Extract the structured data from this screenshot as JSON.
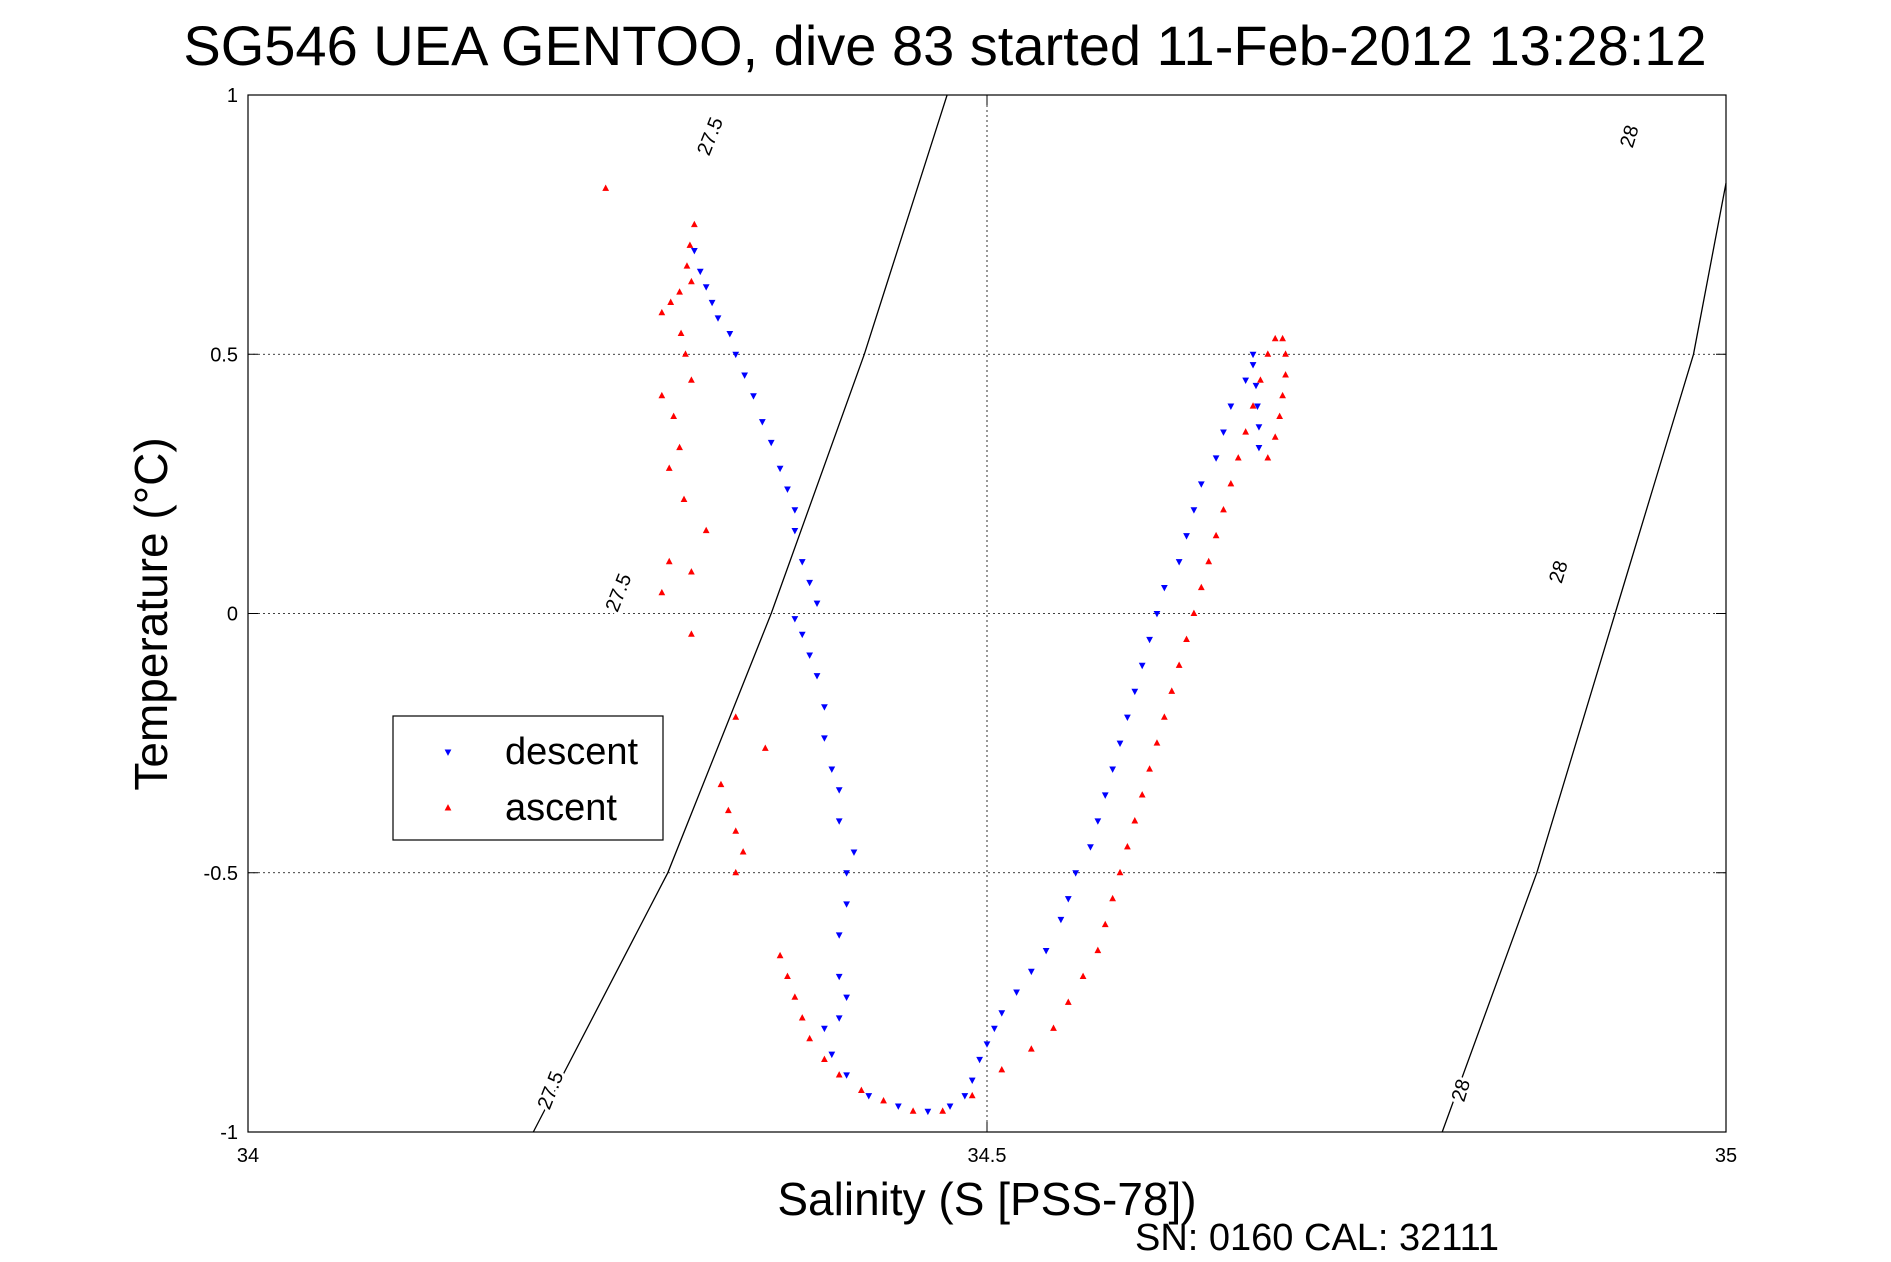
{
  "chart_data": {
    "type": "scatter",
    "title": "SG546 UEA GENTOO, dive 83 started 11-Feb-2012 13:28:12",
    "xlabel": "Salinity (S [PSS-78])",
    "ylabel": "Temperature (°C)",
    "xlim": [
      34,
      35
    ],
    "ylim": [
      -1,
      1
    ],
    "xticks": [
      34,
      34.5,
      35
    ],
    "xtick_labels": [
      "34",
      "34.5",
      "35"
    ],
    "yticks": [
      -1,
      -0.5,
      0,
      0.5,
      1
    ],
    "ytick_labels": [
      "-1",
      "-0.5",
      "0",
      "0.5",
      "1"
    ],
    "grid": true,
    "legend_position": "middle-left",
    "footer": "SN: 0160  CAL: 32111",
    "density_contours": [
      {
        "level": "27.5",
        "points": [
          [
            34.193,
            -1.0
          ],
          [
            34.284,
            -0.5
          ],
          [
            34.354,
            0.0
          ],
          [
            34.417,
            0.5
          ],
          [
            34.473,
            1.0
          ]
        ],
        "labels": [
          [
            34.205,
            -0.92
          ],
          [
            34.251,
            0.04
          ],
          [
            34.313,
            0.92
          ]
        ]
      },
      {
        "level": "28",
        "points": [
          [
            34.808,
            -1.0
          ],
          [
            34.872,
            -0.5
          ],
          [
            34.925,
            0.0
          ],
          [
            34.978,
            0.5
          ],
          [
            35.0,
            0.83
          ]
        ],
        "labels": [
          [
            34.821,
            -0.92
          ],
          [
            34.887,
            0.08
          ],
          [
            34.935,
            0.92
          ]
        ]
      }
    ],
    "series": [
      {
        "name": "descent",
        "color": "#0000ff",
        "marker": "triangle-down",
        "points": [
          [
            34.302,
            0.7
          ],
          [
            34.306,
            0.66
          ],
          [
            34.31,
            0.63
          ],
          [
            34.314,
            0.6
          ],
          [
            34.318,
            0.57
          ],
          [
            34.326,
            0.54
          ],
          [
            34.33,
            0.5
          ],
          [
            34.336,
            0.46
          ],
          [
            34.342,
            0.42
          ],
          [
            34.348,
            0.37
          ],
          [
            34.354,
            0.33
          ],
          [
            34.36,
            0.28
          ],
          [
            34.365,
            0.24
          ],
          [
            34.37,
            0.2
          ],
          [
            34.37,
            0.16
          ],
          [
            34.375,
            0.1
          ],
          [
            34.38,
            0.06
          ],
          [
            34.385,
            0.02
          ],
          [
            34.37,
            -0.01
          ],
          [
            34.375,
            -0.04
          ],
          [
            34.38,
            -0.08
          ],
          [
            34.385,
            -0.12
          ],
          [
            34.39,
            -0.18
          ],
          [
            34.39,
            -0.24
          ],
          [
            34.395,
            -0.3
          ],
          [
            34.4,
            -0.34
          ],
          [
            34.4,
            -0.4
          ],
          [
            34.41,
            -0.46
          ],
          [
            34.405,
            -0.5
          ],
          [
            34.405,
            -0.56
          ],
          [
            34.4,
            -0.62
          ],
          [
            34.4,
            -0.7
          ],
          [
            34.405,
            -0.74
          ],
          [
            34.4,
            -0.78
          ],
          [
            34.39,
            -0.8
          ],
          [
            34.395,
            -0.85
          ],
          [
            34.405,
            -0.89
          ],
          [
            34.42,
            -0.93
          ],
          [
            34.44,
            -0.95
          ],
          [
            34.46,
            -0.96
          ],
          [
            34.475,
            -0.95
          ],
          [
            34.485,
            -0.93
          ],
          [
            34.49,
            -0.9
          ],
          [
            34.495,
            -0.86
          ],
          [
            34.5,
            -0.83
          ],
          [
            34.505,
            -0.8
          ],
          [
            34.51,
            -0.77
          ],
          [
            34.52,
            -0.73
          ],
          [
            34.53,
            -0.69
          ],
          [
            34.54,
            -0.65
          ],
          [
            34.55,
            -0.59
          ],
          [
            34.555,
            -0.55
          ],
          [
            34.56,
            -0.5
          ],
          [
            34.57,
            -0.45
          ],
          [
            34.575,
            -0.4
          ],
          [
            34.58,
            -0.35
          ],
          [
            34.585,
            -0.3
          ],
          [
            34.59,
            -0.25
          ],
          [
            34.595,
            -0.2
          ],
          [
            34.6,
            -0.15
          ],
          [
            34.605,
            -0.1
          ],
          [
            34.61,
            -0.05
          ],
          [
            34.615,
            0.0
          ],
          [
            34.62,
            0.05
          ],
          [
            34.63,
            0.1
          ],
          [
            34.635,
            0.15
          ],
          [
            34.64,
            0.2
          ],
          [
            34.645,
            0.25
          ],
          [
            34.655,
            0.3
          ],
          [
            34.66,
            0.35
          ],
          [
            34.665,
            0.4
          ],
          [
            34.675,
            0.45
          ],
          [
            34.68,
            0.5
          ],
          [
            34.68,
            0.48
          ],
          [
            34.682,
            0.44
          ],
          [
            34.683,
            0.4
          ],
          [
            34.684,
            0.36
          ],
          [
            34.684,
            0.32
          ]
        ]
      },
      {
        "name": "ascent",
        "color": "#ff0000",
        "marker": "triangle-up",
        "points": [
          [
            34.242,
            0.82
          ],
          [
            34.302,
            0.75
          ],
          [
            34.299,
            0.71
          ],
          [
            34.297,
            0.67
          ],
          [
            34.3,
            0.64
          ],
          [
            34.292,
            0.62
          ],
          [
            34.286,
            0.6
          ],
          [
            34.28,
            0.58
          ],
          [
            34.293,
            0.54
          ],
          [
            34.296,
            0.5
          ],
          [
            34.3,
            0.45
          ],
          [
            34.28,
            0.42
          ],
          [
            34.288,
            0.38
          ],
          [
            34.292,
            0.32
          ],
          [
            34.285,
            0.28
          ],
          [
            34.295,
            0.22
          ],
          [
            34.31,
            0.16
          ],
          [
            34.285,
            0.1
          ],
          [
            34.3,
            0.08
          ],
          [
            34.28,
            0.04
          ],
          [
            34.3,
            -0.04
          ],
          [
            34.33,
            -0.2
          ],
          [
            34.35,
            -0.26
          ],
          [
            34.32,
            -0.33
          ],
          [
            34.325,
            -0.38
          ],
          [
            34.33,
            -0.42
          ],
          [
            34.335,
            -0.46
          ],
          [
            34.33,
            -0.5
          ],
          [
            34.36,
            -0.66
          ],
          [
            34.365,
            -0.7
          ],
          [
            34.37,
            -0.74
          ],
          [
            34.375,
            -0.78
          ],
          [
            34.38,
            -0.82
          ],
          [
            34.39,
            -0.86
          ],
          [
            34.4,
            -0.89
          ],
          [
            34.415,
            -0.92
          ],
          [
            34.43,
            -0.94
          ],
          [
            34.45,
            -0.96
          ],
          [
            34.47,
            -0.96
          ],
          [
            34.49,
            -0.93
          ],
          [
            34.51,
            -0.88
          ],
          [
            34.53,
            -0.84
          ],
          [
            34.545,
            -0.8
          ],
          [
            34.555,
            -0.75
          ],
          [
            34.565,
            -0.7
          ],
          [
            34.575,
            -0.65
          ],
          [
            34.58,
            -0.6
          ],
          [
            34.585,
            -0.55
          ],
          [
            34.59,
            -0.5
          ],
          [
            34.595,
            -0.45
          ],
          [
            34.6,
            -0.4
          ],
          [
            34.605,
            -0.35
          ],
          [
            34.61,
            -0.3
          ],
          [
            34.615,
            -0.25
          ],
          [
            34.62,
            -0.2
          ],
          [
            34.625,
            -0.15
          ],
          [
            34.63,
            -0.1
          ],
          [
            34.635,
            -0.05
          ],
          [
            34.64,
            0.0
          ],
          [
            34.645,
            0.05
          ],
          [
            34.65,
            0.1
          ],
          [
            34.655,
            0.15
          ],
          [
            34.66,
            0.2
          ],
          [
            34.665,
            0.25
          ],
          [
            34.67,
            0.3
          ],
          [
            34.675,
            0.35
          ],
          [
            34.68,
            0.4
          ],
          [
            34.685,
            0.45
          ],
          [
            34.69,
            0.5
          ],
          [
            34.695,
            0.53
          ],
          [
            34.7,
            0.53
          ],
          [
            34.702,
            0.5
          ],
          [
            34.702,
            0.46
          ],
          [
            34.7,
            0.42
          ],
          [
            34.698,
            0.38
          ],
          [
            34.695,
            0.34
          ],
          [
            34.69,
            0.3
          ]
        ]
      }
    ]
  }
}
